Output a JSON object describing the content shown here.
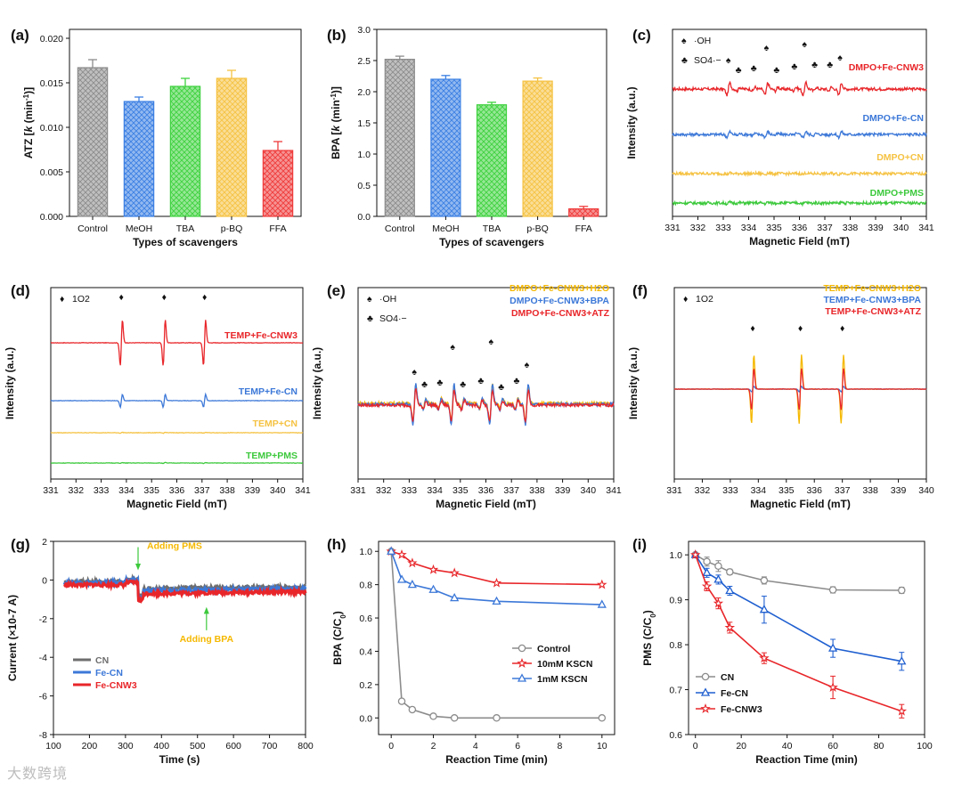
{
  "watermark": "大数跨境",
  "chart_data": [
    {
      "panel": "(a)",
      "type": "bar",
      "categories": [
        "Control",
        "MeOH",
        "TBA",
        "p-BQ",
        "FFA"
      ],
      "values": [
        0.0167,
        0.0129,
        0.0146,
        0.0155,
        0.0074
      ],
      "errors": [
        0.0009,
        0.0005,
        0.0009,
        0.0009,
        0.001
      ],
      "colors": [
        "#8c8c8c",
        "#3b7fe3",
        "#3fd23f",
        "#f5c242",
        "#ef3b3b"
      ],
      "ylabel": "ATZ [k (min-1)]",
      "ylabel_main": "ATZ [",
      "ylabel_k": "k",
      "ylabel_unit": " (min",
      "ylabel_sup": "-1",
      "ylabel_end": ")]",
      "xlabel": "Types of scavengers",
      "ylim": [
        0,
        0.021
      ],
      "yticks": [
        "0.000",
        "0.005",
        "0.010",
        "0.015",
        "0.020"
      ],
      "ytick_values": [
        0,
        0.005,
        0.01,
        0.015,
        0.02
      ]
    },
    {
      "panel": "(b)",
      "type": "bar",
      "categories": [
        "Control",
        "MeOH",
        "TBA",
        "p-BQ",
        "FFA"
      ],
      "values": [
        2.52,
        2.2,
        1.79,
        2.17,
        0.12
      ],
      "errors": [
        0.05,
        0.06,
        0.04,
        0.05,
        0.04
      ],
      "colors": [
        "#8c8c8c",
        "#3b7fe3",
        "#3fd23f",
        "#f5c242",
        "#ef3b3b"
      ],
      "ylabel": "BPA [k (min-1)]",
      "ylabel_main": "BPA [",
      "ylabel_k": "k",
      "ylabel_unit": " (min",
      "ylabel_sup": "-1",
      "ylabel_end": ")]",
      "xlabel": "Types of scavengers",
      "ylim": [
        0,
        3.0
      ],
      "yticks": [
        "0.0",
        "0.5",
        "1.0",
        "1.5",
        "2.0",
        "2.5",
        "3.0"
      ],
      "ytick_values": [
        0,
        0.5,
        1.0,
        1.5,
        2.0,
        2.5,
        3.0
      ]
    },
    {
      "panel": "(c)",
      "type": "line",
      "kind": "dmpo",
      "xlabel": "Magnetic Field  (mT)",
      "ylabel": "Intensity (a.u.)",
      "xlim": [
        331,
        341
      ],
      "xticks": [
        "331",
        "332",
        "333",
        "334",
        "335",
        "336",
        "337",
        "338",
        "339",
        "340",
        "341"
      ],
      "ytick_values": [],
      "legend_symbols": [
        {
          "sym": "♠",
          "text": "·OH"
        },
        {
          "sym": "♣",
          "text": "SO4·−"
        }
      ],
      "markers_spade": [
        333.2,
        334.7,
        336.2,
        337.6
      ],
      "markers_club": [
        333.6,
        334.2,
        335.1,
        335.8,
        336.6,
        337.2
      ],
      "series": [
        {
          "name": "DMPO+Fe-CNW3",
          "color": "#e8262a",
          "amplitude": 1.0
        },
        {
          "name": "DMPO+Fe-CN",
          "color": "#3c78d8",
          "amplitude": 0.45
        },
        {
          "name": "DMPO+CN",
          "color": "#f5c242",
          "amplitude": 0.12
        },
        {
          "name": "DMPO+PMS",
          "color": "#3cc93c",
          "amplitude": 0.12
        }
      ]
    },
    {
      "panel": "(d)",
      "type": "line",
      "kind": "temp",
      "xlabel": "Magnetic Field  (mT)",
      "ylabel": "Intensity (a.u.)",
      "xlim": [
        331,
        341
      ],
      "xticks": [
        "331",
        "332",
        "333",
        "334",
        "335",
        "336",
        "337",
        "338",
        "339",
        "340",
        "341"
      ],
      "legend_symbols": [
        {
          "sym": "♦",
          "text": "1O2"
        }
      ],
      "markers_diamond": [
        333.8,
        335.5,
        337.1
      ],
      "series": [
        {
          "name": "TEMP+Fe-CNW3",
          "color": "#e8262a",
          "amplitude": 1.0
        },
        {
          "name": "TEMP+Fe-CN",
          "color": "#3c78d8",
          "amplitude": 0.28
        },
        {
          "name": "TEMP+CN",
          "color": "#f5c242",
          "amplitude": 0.02
        },
        {
          "name": "TEMP+PMS",
          "color": "#3cc93c",
          "amplitude": 0.02
        }
      ]
    },
    {
      "panel": "(e)",
      "type": "line",
      "kind": "dmpo-overlay",
      "xlabel": "Magnetic Field  (mT)",
      "ylabel": "Intensity (a.u.)",
      "xlim": [
        331,
        341
      ],
      "xticks": [
        "331",
        "332",
        "333",
        "334",
        "335",
        "336",
        "337",
        "338",
        "339",
        "340",
        "341"
      ],
      "legend_symbols": [
        {
          "sym": "♠",
          "text": "·OH"
        },
        {
          "sym": "♣",
          "text": "SO4·−"
        }
      ],
      "markers_spade": [
        333.2,
        334.7,
        336.2,
        337.6
      ],
      "markers_club": [
        333.6,
        334.2,
        335.1,
        335.8,
        336.6,
        337.2
      ],
      "series": [
        {
          "name": "DMPO+Fe-CNW3+H2O",
          "color": "#f5b800",
          "amplitude": 1.0
        },
        {
          "name": "DMPO+Fe-CNW3+BPA",
          "color": "#3c78d8",
          "amplitude": 1.1
        },
        {
          "name": "DMPO+Fe-CNW3+ATZ",
          "color": "#e8262a",
          "amplitude": 0.85
        }
      ]
    },
    {
      "panel": "(f)",
      "type": "line",
      "kind": "temp-overlay",
      "xlabel": "Magnetic Field  (mT)",
      "ylabel": "Intensity (a.u.)",
      "xlim": [
        331,
        340
      ],
      "xticks": [
        "331",
        "332",
        "333",
        "334",
        "335",
        "336",
        "337",
        "338",
        "339",
        "340"
      ],
      "legend_symbols": [
        {
          "sym": "♦",
          "text": "1O2"
        }
      ],
      "markers_diamond": [
        333.8,
        335.5,
        337.0
      ],
      "series": [
        {
          "name": "TEMP+Fe-CNW3+H2O",
          "color": "#f5b800",
          "amplitude": 1.0
        },
        {
          "name": "TEMP+Fe-CNW3+BPA",
          "color": "#3c78d8",
          "amplitude": 0.08
        },
        {
          "name": "TEMP+Fe-CNW3+ATZ",
          "color": "#e8262a",
          "amplitude": 0.6
        }
      ]
    },
    {
      "panel": "(g)",
      "type": "line",
      "kind": "current",
      "xlabel": "Time (s)",
      "ylabel": "Current (×10-7 A)",
      "xlim": [
        100,
        800
      ],
      "ylim": [
        -8,
        2
      ],
      "xticks": [
        "100",
        "200",
        "300",
        "400",
        "500",
        "600",
        "700",
        "800"
      ],
      "xtick_values": [
        100,
        200,
        300,
        400,
        500,
        600,
        700,
        800
      ],
      "yticks": [
        "2",
        "0",
        "-2",
        "-4",
        "-6",
        "-8"
      ],
      "ytick_values": [
        2,
        0,
        -2,
        -4,
        -6,
        -8
      ],
      "annotations": [
        {
          "text": "Adding PMS",
          "x": 335
        },
        {
          "text": "Adding BPA",
          "x": 525
        }
      ],
      "series": [
        {
          "name": "CN",
          "color": "#6e6e6e",
          "before": -0.1,
          "after": -0.45
        },
        {
          "name": "Fe-CN",
          "color": "#3c78d8",
          "before": -0.15,
          "after": -0.55
        },
        {
          "name": "Fe-CNW3",
          "color": "#e8262a",
          "before": -0.25,
          "after": -0.7
        }
      ]
    },
    {
      "panel": "(h)",
      "type": "line",
      "xlabel": "Reaction Time (min)",
      "ylabel": "BPA (C/C0)",
      "xlim": [
        -0.6,
        10.6
      ],
      "ylim": [
        -0.1,
        1.06
      ],
      "xticks": [
        "0",
        "2",
        "4",
        "6",
        "8",
        "10"
      ],
      "xtick_values": [
        0,
        2,
        4,
        6,
        8,
        10
      ],
      "yticks": [
        "0.0",
        "0.2",
        "0.4",
        "0.6",
        "0.8",
        "1.0"
      ],
      "ytick_values": [
        0,
        0.2,
        0.4,
        0.6,
        0.8,
        1.0
      ],
      "series": [
        {
          "name": "Control",
          "color": "#8c8c8c",
          "marker": "circle",
          "x": [
            0,
            0.5,
            1,
            2,
            3,
            5,
            10
          ],
          "y": [
            1.0,
            0.1,
            0.05,
            0.01,
            0.0,
            0.0,
            0.0
          ]
        },
        {
          "name": "10mM KSCN",
          "color": "#e8262a",
          "marker": "star",
          "x": [
            0,
            0.5,
            1,
            2,
            3,
            5,
            10
          ],
          "y": [
            1.0,
            0.98,
            0.93,
            0.89,
            0.87,
            0.81,
            0.8
          ]
        },
        {
          "name": "1mM  KSCN",
          "color": "#3c78d8",
          "marker": "triangle",
          "x": [
            0,
            0.5,
            1,
            2,
            3,
            5,
            10
          ],
          "y": [
            1.0,
            0.83,
            0.8,
            0.77,
            0.72,
            0.7,
            0.68
          ]
        }
      ]
    },
    {
      "panel": "(i)",
      "type": "line",
      "xlabel": "Reaction Time (min)",
      "ylabel": "PMS (C/C0)",
      "xlim": [
        -3,
        100
      ],
      "ylim": [
        0.6,
        1.03
      ],
      "xticks": [
        "0",
        "20",
        "40",
        "60",
        "80",
        "100"
      ],
      "xtick_values": [
        0,
        20,
        40,
        60,
        80,
        100
      ],
      "yticks": [
        "0.6",
        "0.7",
        "0.8",
        "0.9",
        "1.0"
      ],
      "ytick_values": [
        0.6,
        0.7,
        0.8,
        0.9,
        1.0
      ],
      "series": [
        {
          "name": "CN",
          "color": "#8c8c8c",
          "marker": "circle",
          "x": [
            0,
            5,
            10,
            15,
            30,
            60,
            90
          ],
          "y": [
            1.0,
            0.985,
            0.975,
            0.962,
            0.943,
            0.922,
            0.921
          ],
          "err": [
            0,
            0.01,
            0.012,
            0.006,
            0.008,
            0.007,
            0.007
          ]
        },
        {
          "name": "Fe-CN",
          "color": "#1f5fd0",
          "marker": "triangle",
          "x": [
            0,
            5,
            10,
            15,
            30,
            60,
            90
          ],
          "y": [
            1.0,
            0.96,
            0.945,
            0.92,
            0.878,
            0.792,
            0.763
          ],
          "err": [
            0,
            0.01,
            0.01,
            0.01,
            0.03,
            0.02,
            0.02
          ]
        },
        {
          "name": "Fe-CNW3",
          "color": "#e8262a",
          "marker": "star",
          "x": [
            0,
            5,
            10,
            15,
            30,
            60,
            90
          ],
          "y": [
            1.0,
            0.93,
            0.892,
            0.838,
            0.77,
            0.705,
            0.652
          ],
          "err": [
            0,
            0.01,
            0.012,
            0.012,
            0.012,
            0.025,
            0.015
          ]
        }
      ]
    }
  ]
}
